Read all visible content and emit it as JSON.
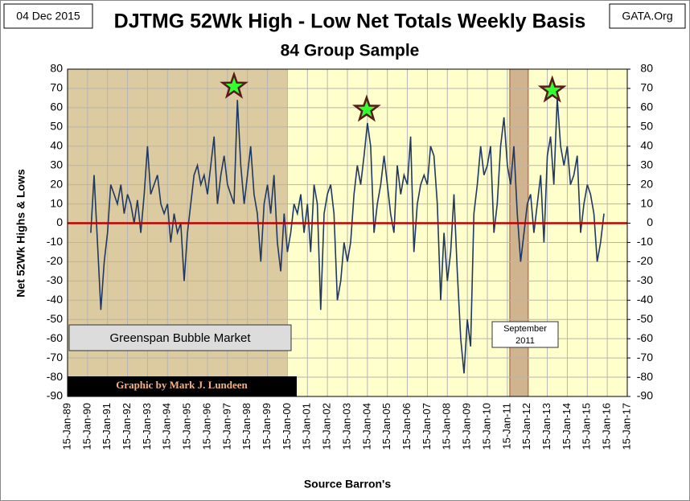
{
  "chart_data": {
    "type": "line",
    "title": "DJTMG 52Wk High - Low Net Totals Weekly Basis",
    "subtitle": "84 Group Sample",
    "date_label": "04 Dec 2015",
    "site_label": "GATA.Org",
    "y_label": "Net 52Wk Highs & Lows",
    "x_label": "Source Barron's",
    "color": "#1f3864",
    "zero_line_color": "#c00000",
    "background": "#ffffcc",
    "grid": true,
    "x": [
      "1990-03-15",
      "1990-05-15",
      "1990-07-15",
      "1990-09-15",
      "1990-11-15",
      "1991-01-15",
      "1991-03-15",
      "1991-05-15",
      "1991-07-15",
      "1991-09-15",
      "1991-11-15",
      "1992-01-15",
      "1992-03-15",
      "1992-05-15",
      "1992-07-15",
      "1992-09-15",
      "1992-11-15",
      "1993-01-15",
      "1993-03-15",
      "1993-05-15",
      "1993-07-15",
      "1993-09-15",
      "1993-11-15",
      "1994-01-15",
      "1994-03-15",
      "1994-05-15",
      "1994-07-15",
      "1994-09-15",
      "1994-11-15",
      "1995-01-15",
      "1995-03-15",
      "1995-05-15",
      "1995-07-15",
      "1995-09-15",
      "1995-11-15",
      "1996-01-15",
      "1996-03-15",
      "1996-05-15",
      "1996-07-15",
      "1996-09-15",
      "1996-11-15",
      "1997-01-15",
      "1997-03-15",
      "1997-05-15",
      "1997-07-15",
      "1997-09-15",
      "1997-11-15",
      "1998-01-15",
      "1998-03-15",
      "1998-05-15",
      "1998-07-15",
      "1998-09-15",
      "1998-11-15",
      "1999-01-15",
      "1999-03-15",
      "1999-05-15",
      "1999-07-15",
      "1999-09-15",
      "1999-11-15",
      "2000-01-15",
      "2000-03-15",
      "2000-05-15",
      "2000-07-15",
      "2000-09-15",
      "2000-11-15",
      "2001-01-15",
      "2001-03-15",
      "2001-05-15",
      "2001-07-15",
      "2001-09-15",
      "2001-11-15",
      "2002-01-15",
      "2002-03-15",
      "2002-05-15",
      "2002-07-15",
      "2002-09-15",
      "2002-11-15",
      "2003-01-15",
      "2003-03-15",
      "2003-05-15",
      "2003-07-15",
      "2003-09-15",
      "2003-11-15",
      "2004-01-15",
      "2004-03-15",
      "2004-05-15",
      "2004-07-15",
      "2004-09-15",
      "2004-11-15",
      "2005-01-15",
      "2005-03-15",
      "2005-05-15",
      "2005-07-15",
      "2005-09-15",
      "2005-11-15",
      "2006-01-15",
      "2006-03-15",
      "2006-05-15",
      "2006-07-15",
      "2006-09-15",
      "2006-11-15",
      "2007-01-15",
      "2007-03-15",
      "2007-05-15",
      "2007-07-15",
      "2007-09-15",
      "2007-11-15",
      "2008-01-15",
      "2008-03-15",
      "2008-05-15",
      "2008-07-15",
      "2008-09-15",
      "2008-11-15",
      "2009-01-15",
      "2009-03-15",
      "2009-05-15",
      "2009-07-15",
      "2009-09-15",
      "2009-11-15",
      "2010-01-15",
      "2010-03-15",
      "2010-05-15",
      "2010-07-15",
      "2010-09-15",
      "2010-11-15",
      "2011-01-15",
      "2011-03-15",
      "2011-05-15",
      "2011-07-15",
      "2011-09-15",
      "2011-11-15",
      "2012-01-15",
      "2012-03-15",
      "2012-05-15",
      "2012-07-15",
      "2012-09-15",
      "2012-11-15",
      "2013-01-15",
      "2013-03-15",
      "2013-05-15",
      "2013-07-15",
      "2013-09-15",
      "2013-11-15",
      "2014-01-15",
      "2014-03-15",
      "2014-05-15",
      "2014-07-15",
      "2014-09-15",
      "2014-11-15",
      "2015-01-15",
      "2015-03-15",
      "2015-05-15",
      "2015-07-15",
      "2015-09-15",
      "2015-11-15"
    ],
    "values": [
      -5,
      25,
      -10,
      -45,
      -20,
      -5,
      20,
      15,
      10,
      20,
      5,
      15,
      10,
      0,
      12,
      -5,
      15,
      40,
      15,
      20,
      25,
      10,
      5,
      10,
      -10,
      5,
      -5,
      0,
      -30,
      -5,
      10,
      25,
      30,
      20,
      25,
      15,
      30,
      45,
      10,
      25,
      35,
      20,
      15,
      10,
      64,
      30,
      10,
      25,
      40,
      15,
      5,
      -20,
      10,
      20,
      5,
      25,
      -10,
      -25,
      5,
      -15,
      -5,
      10,
      5,
      15,
      -5,
      10,
      -15,
      20,
      10,
      -45,
      5,
      15,
      20,
      5,
      -40,
      -30,
      -10,
      -20,
      -10,
      15,
      30,
      20,
      35,
      52,
      40,
      -5,
      10,
      20,
      35,
      20,
      5,
      -5,
      30,
      15,
      25,
      20,
      45,
      -15,
      10,
      20,
      25,
      20,
      40,
      35,
      10,
      -40,
      -5,
      -30,
      -15,
      15,
      -25,
      -60,
      -78,
      -50,
      -64,
      5,
      20,
      40,
      25,
      30,
      40,
      -5,
      10,
      40,
      55,
      30,
      20,
      40,
      5,
      -20,
      -5,
      10,
      15,
      -5,
      10,
      25,
      -10,
      35,
      45,
      20,
      65,
      40,
      30,
      40,
      20,
      25,
      35,
      -5,
      10,
      20,
      15,
      5,
      -20,
      -10,
      5
    ],
    "xlim": [
      "1989-01-15",
      "2017-01-15"
    ],
    "xticks": [
      {
        "value": "1989-01-15",
        "label": "15-Jan-89"
      },
      {
        "value": "1990-01-15",
        "label": "15-Jan-90"
      },
      {
        "value": "1991-01-15",
        "label": "15-Jan-91"
      },
      {
        "value": "1992-01-15",
        "label": "15-Jan-92"
      },
      {
        "value": "1993-01-15",
        "label": "15-Jan-93"
      },
      {
        "value": "1994-01-15",
        "label": "15-Jan-94"
      },
      {
        "value": "1995-01-15",
        "label": "15-Jan-95"
      },
      {
        "value": "1996-01-15",
        "label": "15-Jan-96"
      },
      {
        "value": "1997-01-15",
        "label": "15-Jan-97"
      },
      {
        "value": "1998-01-15",
        "label": "15-Jan-98"
      },
      {
        "value": "1999-01-15",
        "label": "15-Jan-99"
      },
      {
        "value": "2000-01-15",
        "label": "15-Jan-00"
      },
      {
        "value": "2001-01-15",
        "label": "15-Jan-01"
      },
      {
        "value": "2002-01-15",
        "label": "15-Jan-02"
      },
      {
        "value": "2003-01-15",
        "label": "15-Jan-03"
      },
      {
        "value": "2004-01-15",
        "label": "15-Jan-04"
      },
      {
        "value": "2005-01-15",
        "label": "15-Jan-05"
      },
      {
        "value": "2006-01-15",
        "label": "15-Jan-06"
      },
      {
        "value": "2007-01-15",
        "label": "15-Jan-07"
      },
      {
        "value": "2008-01-15",
        "label": "15-Jan-08"
      },
      {
        "value": "2009-01-15",
        "label": "15-Jan-09"
      },
      {
        "value": "2010-01-15",
        "label": "15-Jan-10"
      },
      {
        "value": "2011-01-15",
        "label": "15-Jan-11"
      },
      {
        "value": "2012-01-15",
        "label": "15-Jan-12"
      },
      {
        "value": "2013-01-15",
        "label": "15-Jan-13"
      },
      {
        "value": "2014-01-15",
        "label": "15-Jan-14"
      },
      {
        "value": "2015-01-15",
        "label": "15-Jan-15"
      },
      {
        "value": "2016-01-15",
        "label": "15-Jan-16"
      },
      {
        "value": "2017-01-15",
        "label": "15-Jan-17"
      }
    ],
    "ylim": [
      -90,
      80
    ],
    "yticks": [
      -90,
      -80,
      -70,
      -60,
      -50,
      -40,
      -30,
      -20,
      -10,
      0,
      10,
      20,
      30,
      40,
      50,
      60,
      70,
      80
    ],
    "y2lim": [
      -90,
      80
    ],
    "y2ticks": [
      -90,
      -80,
      -70,
      -60,
      -50,
      -40,
      -30,
      -20,
      -10,
      0,
      10,
      20,
      30,
      40,
      50,
      60,
      70,
      80
    ],
    "shaded_regions": [
      {
        "from": "1989-01-15",
        "to": "2000-01-15",
        "color": "#dccba0"
      },
      {
        "from": "2011-03-01",
        "to": "2012-02-01",
        "color": "#cfb48f"
      }
    ],
    "stars": [
      {
        "x": "1997-05-15",
        "y": 71
      },
      {
        "x": "2004-01-01",
        "y": 59
      },
      {
        "x": "2013-04-15",
        "y": 69
      }
    ],
    "star_color": "#33ff33",
    "annotations": {
      "bubble": "Greenspan Bubble Market",
      "september": [
        "September",
        "2011"
      ],
      "credit": "Graphic by Mark J. Lundeen"
    }
  }
}
